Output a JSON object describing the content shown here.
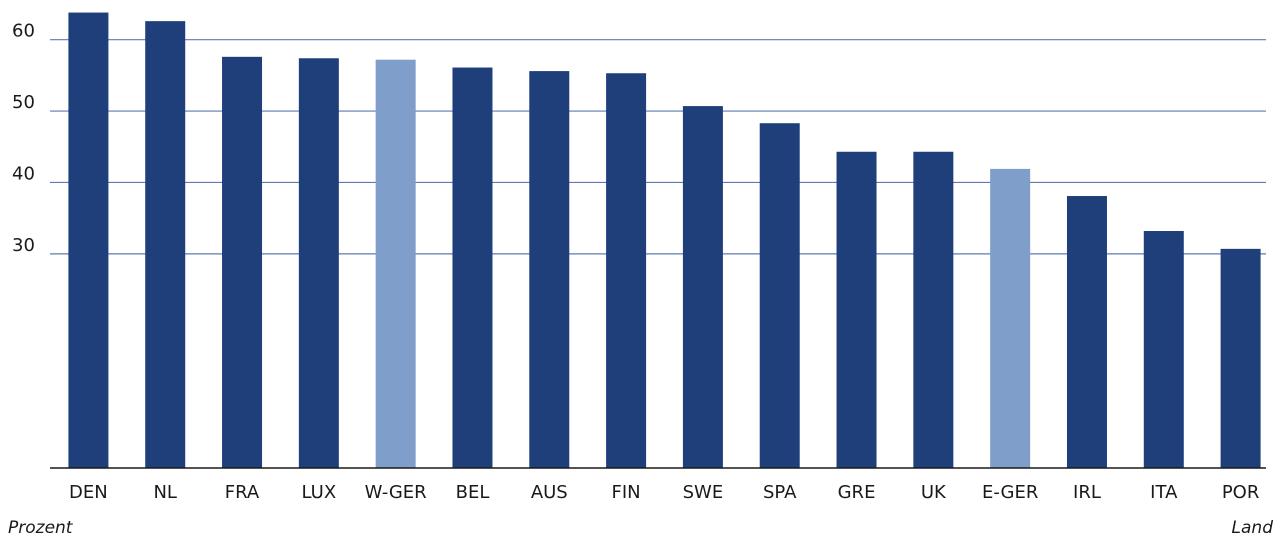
{
  "chart_data": {
    "type": "bar",
    "categories": [
      "DEN",
      "NL",
      "FRA",
      "LUX",
      "W-GER",
      "BEL",
      "AUS",
      "FIN",
      "SWE",
      "SPA",
      "GRE",
      "UK",
      "E-GER",
      "IRL",
      "ITA",
      "POR"
    ],
    "values": [
      63.8,
      62.6,
      57.6,
      57.4,
      57.2,
      56.1,
      55.6,
      55.3,
      50.7,
      48.3,
      44.3,
      44.3,
      41.9,
      38.1,
      33.2,
      30.7
    ],
    "colors": [
      "#1f3f7b",
      "#1f3f7b",
      "#1f3f7b",
      "#1f3f7b",
      "#7f9eca",
      "#1f3f7b",
      "#1f3f7b",
      "#1f3f7b",
      "#1f3f7b",
      "#1f3f7b",
      "#1f3f7b",
      "#1f3f7b",
      "#7f9eca",
      "#1f3f7b",
      "#1f3f7b",
      "#1f3f7b"
    ],
    "ylim": [
      0,
      65
    ],
    "yticks": [
      30,
      40,
      50,
      60
    ],
    "grid": true,
    "ylabel": "Prozent",
    "xlabel": "Land"
  }
}
